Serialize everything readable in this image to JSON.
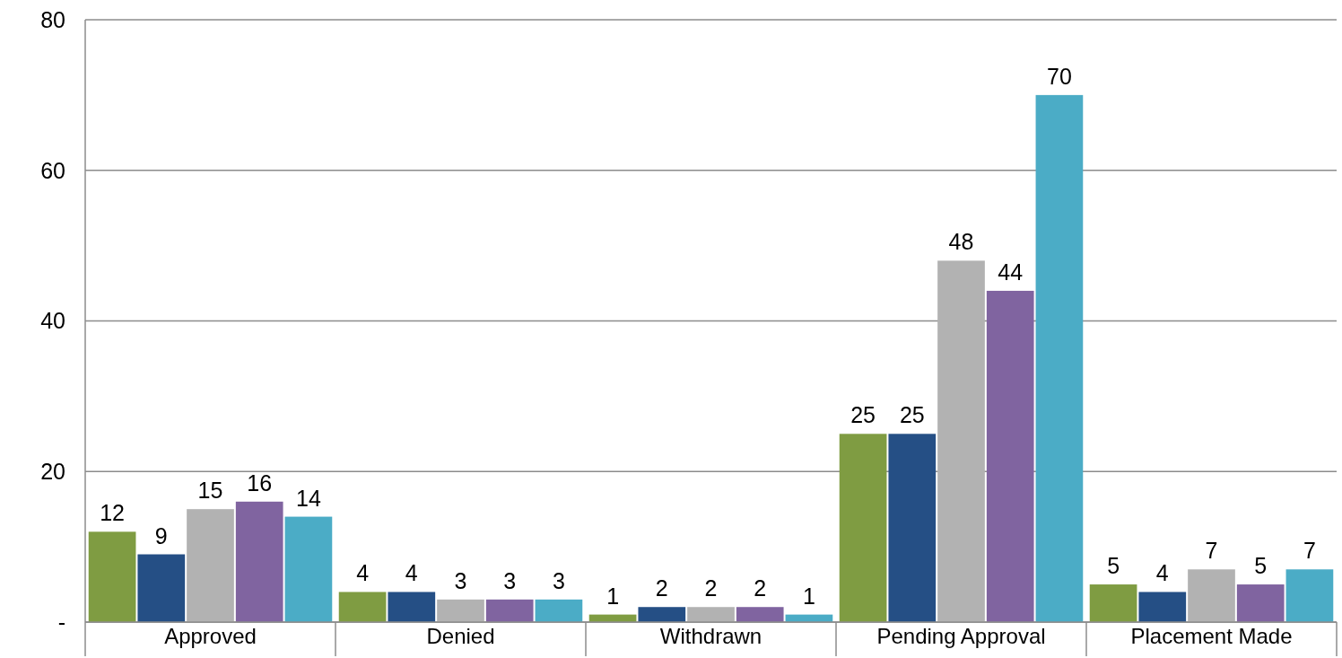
{
  "chart_data": {
    "type": "bar",
    "categories": [
      "Approved",
      "Denied",
      "Withdrawn",
      "Pending Approval",
      "Placement Made"
    ],
    "series": [
      {
        "color": "#7f9c42",
        "values": [
          12,
          4,
          1,
          25,
          5
        ]
      },
      {
        "color": "#254f85",
        "values": [
          9,
          4,
          2,
          25,
          4
        ]
      },
      {
        "color": "#b2b2b2",
        "values": [
          15,
          3,
          2,
          48,
          7
        ]
      },
      {
        "color": "#8064a0",
        "values": [
          16,
          3,
          2,
          44,
          5
        ]
      },
      {
        "color": "#4bacc6",
        "values": [
          14,
          3,
          1,
          70,
          7
        ]
      }
    ],
    "ylim": [
      0,
      80
    ],
    "yticks": [
      {
        "value": 0,
        "label": "-"
      },
      20,
      40,
      60,
      80
    ],
    "grid": "y",
    "data_labels": true
  }
}
